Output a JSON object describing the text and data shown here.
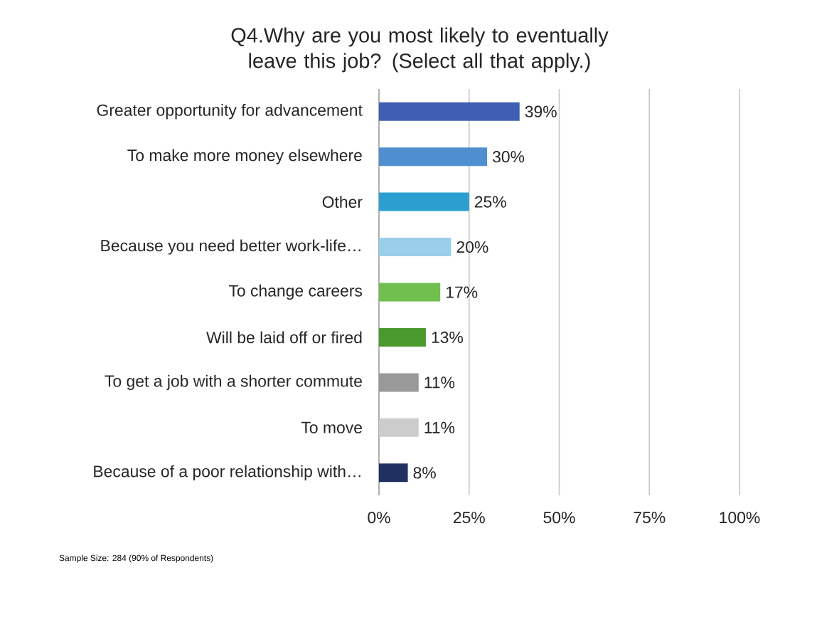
{
  "chart_data": {
    "type": "bar",
    "orientation": "horizontal",
    "title": "Q4.Why are you most likely to eventually leave this job? (Select all that apply.)",
    "categories": [
      "Greater opportunity for advancement",
      "To make more money elsewhere",
      "Other",
      "Because you need better work-life…",
      "To change careers",
      "Will be laid off or fired",
      "To get a job with a shorter commute",
      "To move",
      "Because of a poor relationship with…"
    ],
    "values": [
      39,
      30,
      25,
      20,
      17,
      13,
      11,
      11,
      8
    ],
    "value_labels": [
      "39%",
      "30%",
      "25%",
      "20%",
      "17%",
      "13%",
      "11%",
      "11%",
      "8%"
    ],
    "colors": [
      "#3f5fb5",
      "#4f8fd0",
      "#2b9fd0",
      "#99cfea",
      "#70bf4f",
      "#4a9a2e",
      "#999999",
      "#cccccc",
      "#203060"
    ],
    "xlim": [
      0,
      100
    ],
    "xticks": [
      {
        "value": 0,
        "label": "0%"
      },
      {
        "value": 25,
        "label": "25%"
      },
      {
        "value": 50,
        "label": "50%"
      },
      {
        "value": 75,
        "label": "75%"
      },
      {
        "value": 100,
        "label": "100%"
      }
    ],
    "grid": "x",
    "annotations": [
      "Sample Size: 284 (90% of Respondents)"
    ]
  }
}
